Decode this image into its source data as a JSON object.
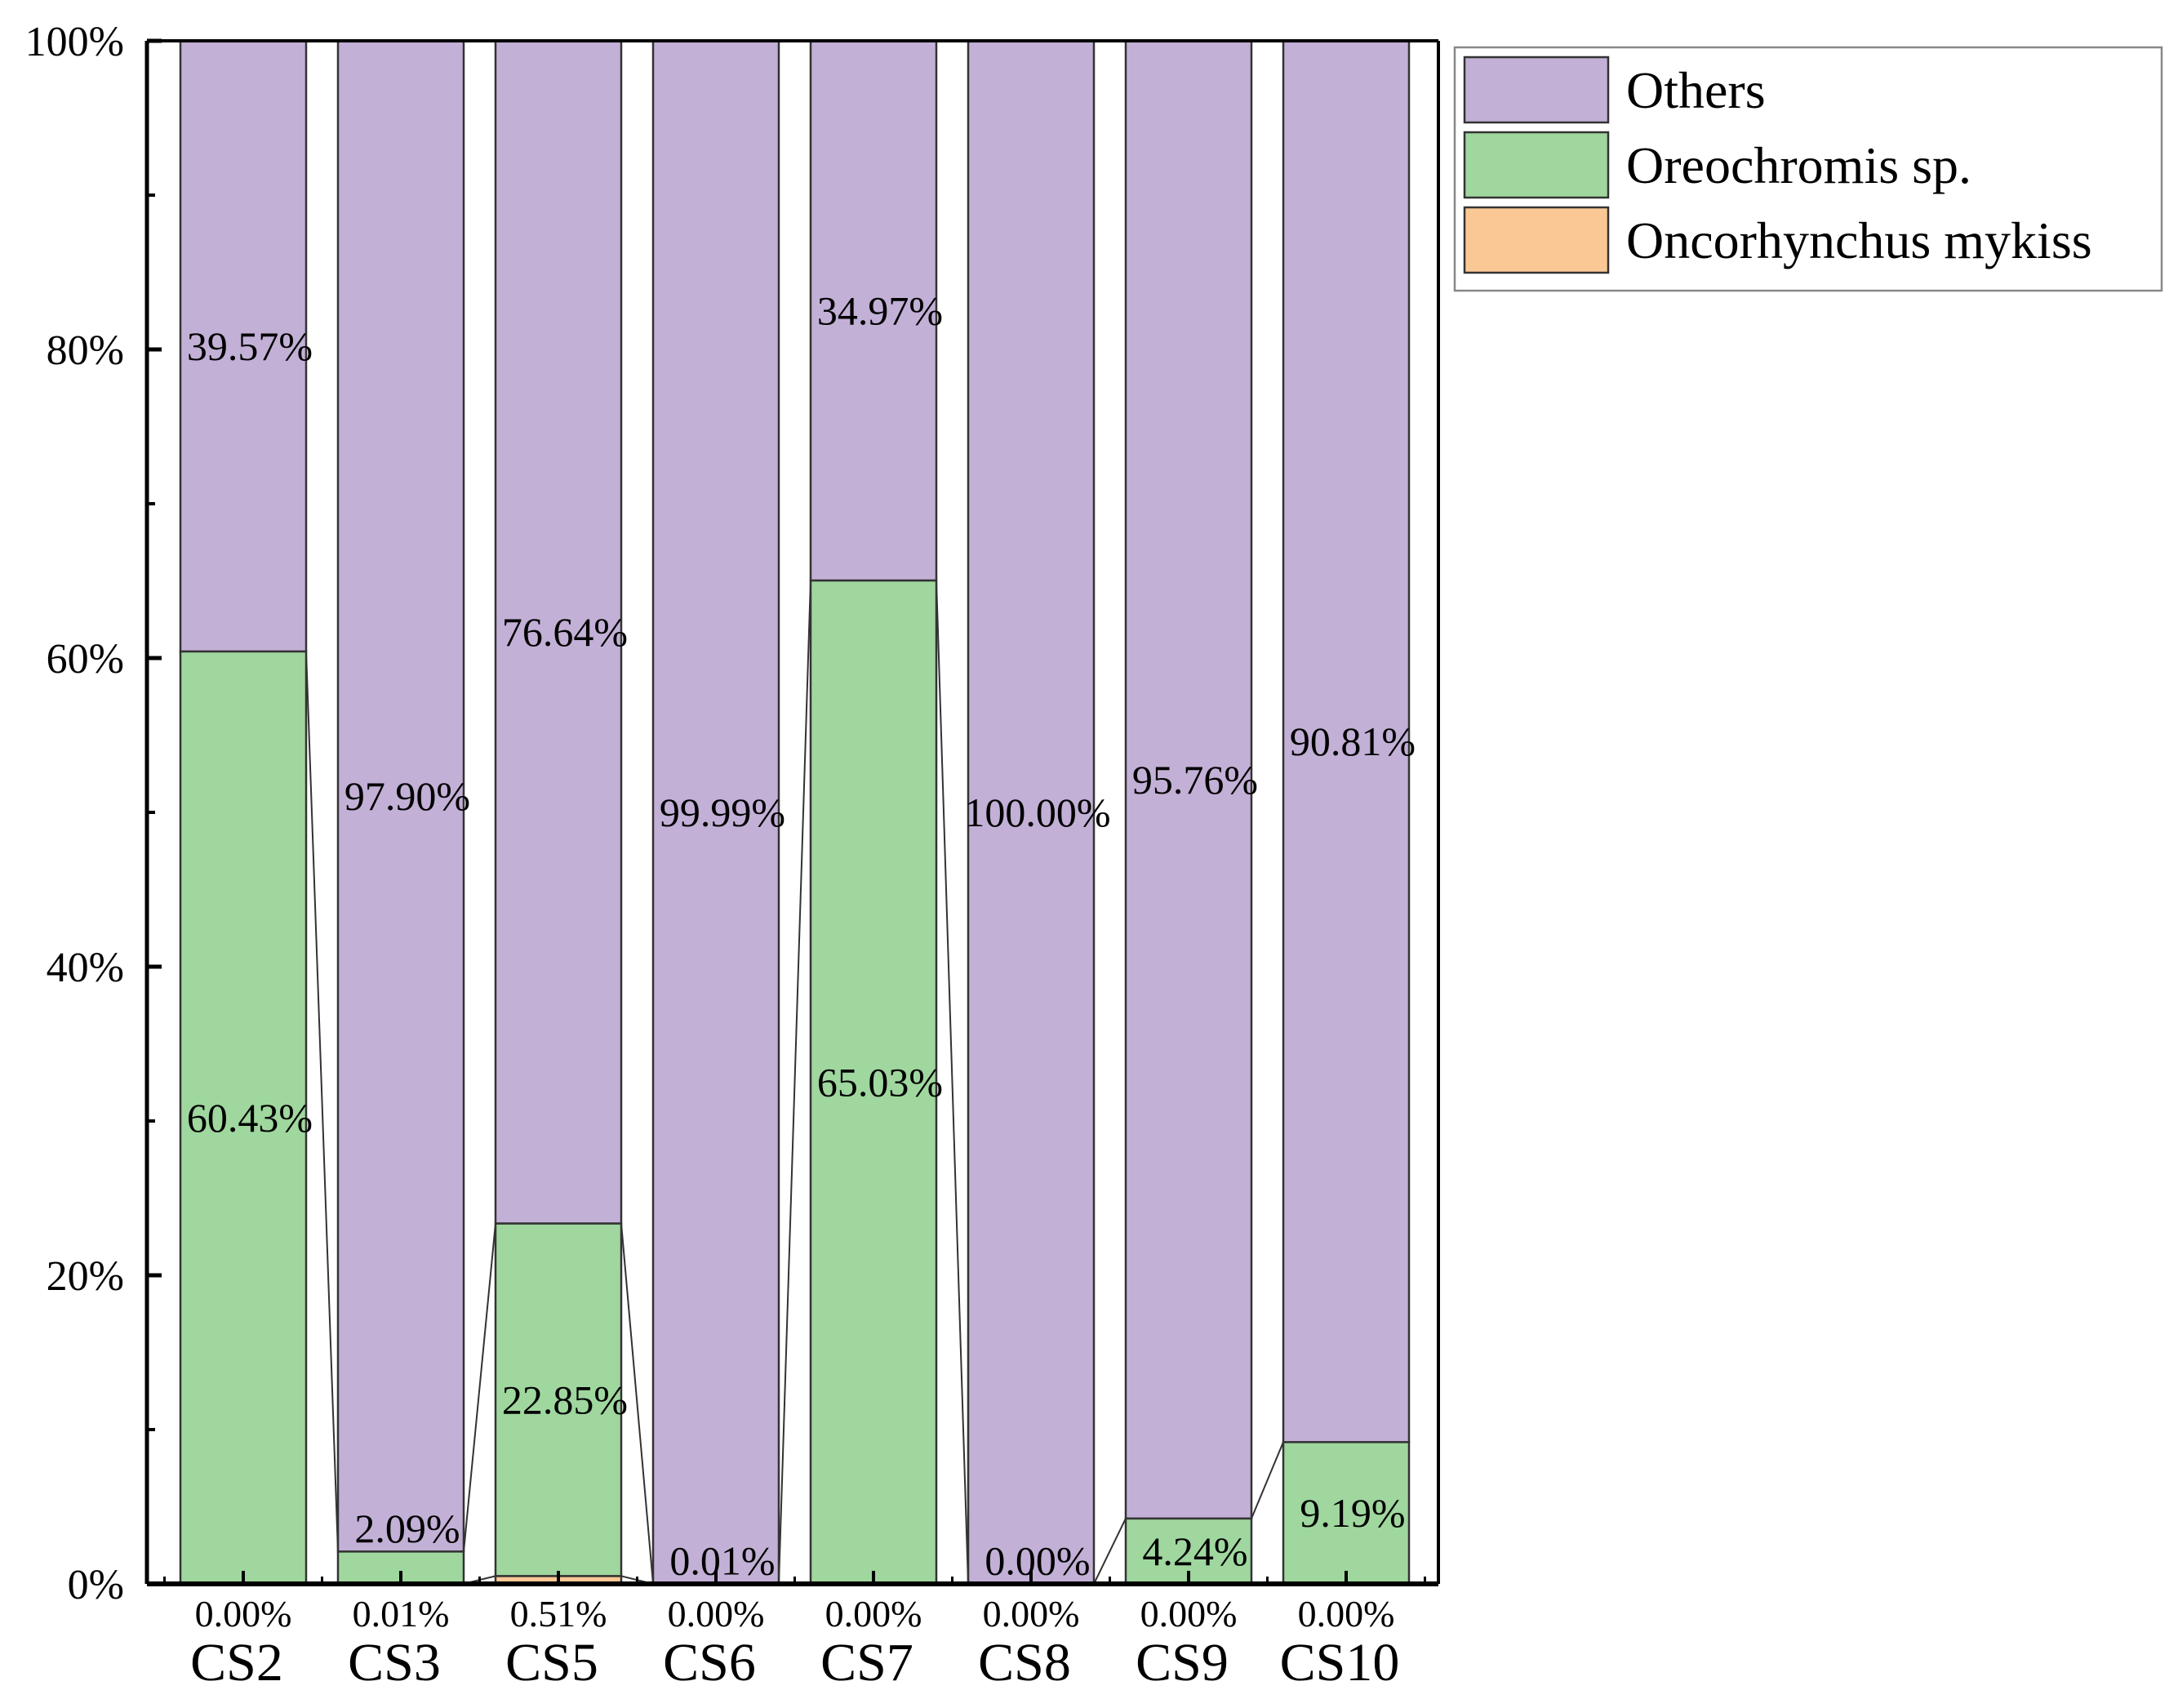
{
  "chart_data": {
    "type": "bar",
    "stacked": true,
    "percent": true,
    "categories": [
      "CS2",
      "CS3",
      "CS5",
      "CS6",
      "CS7",
      "CS8",
      "CS9",
      "CS10"
    ],
    "series": [
      {
        "name": "Oncorhynchus mykiss",
        "color": "#FAC895",
        "values": [
          0.0,
          0.01,
          0.51,
          0.0,
          0.0,
          0.0,
          0.0,
          0.0
        ],
        "labels": [
          "0.00%",
          "0.01%",
          "0.51%",
          "0.00%",
          "0.00%",
          "0.00%",
          "0.00%",
          "0.00%"
        ]
      },
      {
        "name": "Oreochromis sp.",
        "color": "#9FD79E",
        "values": [
          60.43,
          2.09,
          22.85,
          0.01,
          65.03,
          0.0,
          4.24,
          9.19
        ],
        "labels": [
          "60.43%",
          "2.09%",
          "22.85%",
          "0.01%",
          "65.03%",
          "0.00%",
          "4.24%",
          "9.19%"
        ]
      },
      {
        "name": "Others",
        "color": "#C2B0D6",
        "values": [
          39.57,
          97.9,
          76.64,
          99.99,
          34.97,
          100.0,
          95.76,
          90.81
        ],
        "labels": [
          "39.57%",
          "97.90%",
          "76.64%",
          "99.99%",
          "34.97%",
          "100.00%",
          "95.76%",
          "90.81%"
        ]
      }
    ],
    "legend": [
      "Others",
      "Oreochromis sp.",
      "Oncorhynchus mykiss"
    ],
    "yticks": [
      "0%",
      "20%",
      "40%",
      "60%",
      "80%",
      "100%"
    ],
    "ylim": [
      0,
      100
    ],
    "legend_position": "top-right",
    "connect_lines": true,
    "title": "",
    "xlabel": "",
    "ylabel": ""
  }
}
